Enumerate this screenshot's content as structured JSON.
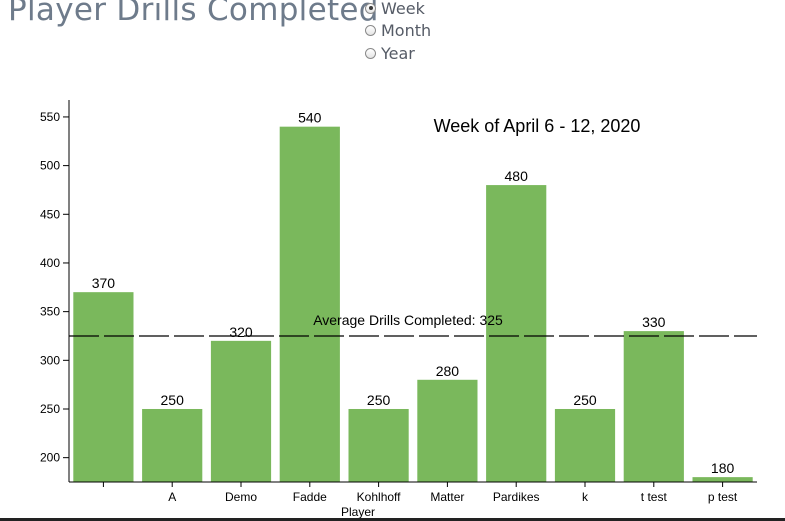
{
  "header": {
    "title": "Player Drills Completed"
  },
  "period_selector": {
    "options": [
      {
        "label": "Week",
        "selected": true
      },
      {
        "label": "Month",
        "selected": false
      },
      {
        "label": "Year",
        "selected": false
      }
    ]
  },
  "chart_data": {
    "type": "bar",
    "title": "Week of April 6 - 12, 2020",
    "xlabel": "Player",
    "ylabel": "",
    "categories": [
      "",
      "A",
      "Demo",
      "Fadde",
      "Kohlhoff",
      "Matter",
      "Pardikes",
      "k",
      "t test",
      "p test"
    ],
    "values": [
      370,
      250,
      320,
      540,
      250,
      280,
      480,
      250,
      330,
      180
    ],
    "ylim": [
      175,
      555
    ],
    "yticks": [
      200,
      250,
      300,
      350,
      400,
      450,
      500,
      550
    ],
    "bar_color": "#7ab85c",
    "average": {
      "value": 325,
      "label": "Average Drills Completed: 325"
    },
    "grid": false
  }
}
